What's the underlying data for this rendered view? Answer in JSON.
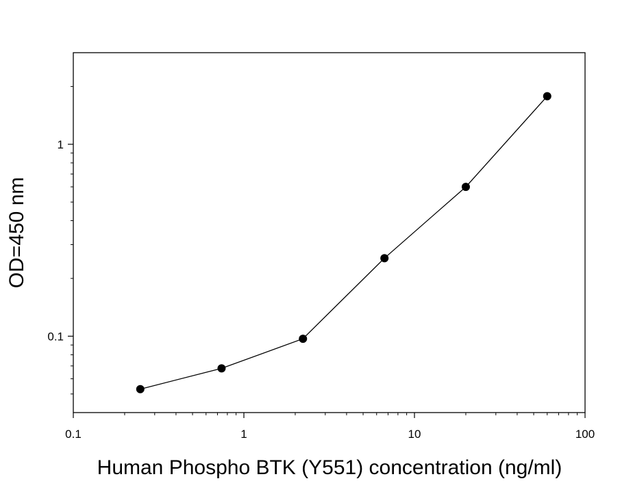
{
  "chart_data": {
    "type": "line",
    "title": "",
    "xlabel": "Human Phospho BTK (Y551) concentration (ng/ml)",
    "ylabel": "OD=450 nm",
    "xscale": "log",
    "yscale": "log",
    "xlim": [
      0.1,
      100
    ],
    "ylim": [
      0.04,
      3.0
    ],
    "grid": false,
    "legend": "none",
    "x_ticks": [
      {
        "value": 0.1,
        "label": "0.1"
      },
      {
        "value": 1,
        "label": "1"
      },
      {
        "value": 10,
        "label": "10"
      },
      {
        "value": 100,
        "label": "100"
      }
    ],
    "y_ticks": [
      {
        "value": 0.1,
        "label": "0.1"
      },
      {
        "value": 1,
        "label": "1"
      }
    ],
    "series": [
      {
        "x": [
          0.247,
          0.74,
          2.22,
          6.67,
          20,
          60
        ],
        "y": [
          0.053,
          0.068,
          0.097,
          0.255,
          0.6,
          1.78
        ],
        "color": "#000000",
        "marker": "filled-circle"
      }
    ]
  }
}
